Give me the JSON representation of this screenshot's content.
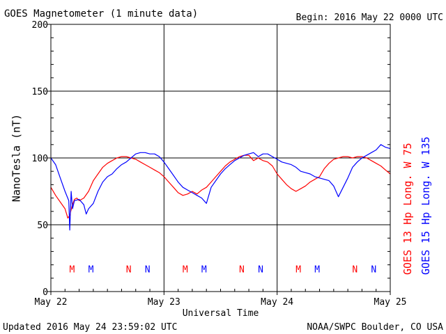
{
  "header": {
    "title": "GOES Magnetometer (1 minute data)",
    "begin": "Begin:  2016 May 22 0000 UTC"
  },
  "footer": {
    "updated": "Updated 2016 May 24 23:59:02 UTC",
    "credit": "NOAA/SWPC Boulder, CO USA"
  },
  "chart_data": {
    "type": "line",
    "title": "GOES Magnetometer (1 minute data)",
    "xlabel": "Universal Time",
    "ylabel": "NanoTesla (nT)",
    "xlim": [
      0,
      72
    ],
    "ylim": [
      0,
      200
    ],
    "yticks": [
      0,
      50,
      100,
      150,
      200
    ],
    "xticks": [
      {
        "value": 0,
        "label": "May 22"
      },
      {
        "value": 24,
        "label": "May 23"
      },
      {
        "value": 48,
        "label": "May 24"
      },
      {
        "value": 72,
        "label": "May 25"
      }
    ],
    "x_unit": "hours since 2016 May 22 0000 UTC",
    "grid": true,
    "legend_position": "right, vertical",
    "colors": {
      "goes13": "#ff0000",
      "goes15": "#0000ff",
      "grid": "#000000"
    },
    "series": [
      {
        "name": "GOES 13 Hp  Long. W 75",
        "color": "#ff0000",
        "x": [
          0,
          1,
          2,
          3,
          3.6,
          4,
          4.5,
          5,
          5.5,
          6,
          7,
          8,
          9,
          10,
          11,
          12,
          13,
          14,
          15,
          16,
          17,
          18,
          19,
          20,
          21,
          22,
          23,
          24,
          25,
          26,
          27,
          28,
          29,
          30,
          31,
          32,
          33,
          34,
          35,
          36,
          37,
          38,
          39,
          40,
          41,
          42,
          43,
          44,
          45,
          46,
          47,
          48,
          49,
          50,
          51,
          52,
          53,
          54,
          55,
          56,
          57,
          58,
          59,
          60,
          61,
          62,
          63,
          64,
          65,
          66,
          67,
          68,
          69,
          70,
          71,
          72
        ],
        "values": [
          78,
          72,
          67,
          62,
          55,
          57,
          64,
          69,
          70,
          68,
          70,
          75,
          83,
          88,
          93,
          96,
          98,
          100,
          101,
          101,
          100,
          99,
          97,
          95,
          93,
          91,
          89,
          86,
          82,
          78,
          74,
          72,
          73,
          75,
          73,
          76,
          78,
          82,
          86,
          90,
          94,
          97,
          99,
          101,
          102,
          102,
          98,
          100,
          98,
          97,
          94,
          88,
          84,
          80,
          77,
          75,
          77,
          79,
          82,
          84,
          86,
          92,
          96,
          99,
          100,
          101,
          101,
          100,
          101,
          101,
          100,
          98,
          96,
          94,
          91,
          88
        ]
      },
      {
        "name": "GOES 15 Hp  Long. W 135",
        "color": "#0000ff",
        "x": [
          0,
          1,
          2,
          3,
          3.8,
          4,
          4.3,
          4.6,
          5,
          6,
          7,
          7.5,
          8,
          9,
          10,
          11,
          12,
          13,
          14,
          15,
          16,
          17,
          18,
          19,
          20,
          21,
          22,
          23,
          24,
          25,
          26,
          27,
          28,
          29,
          30,
          31,
          32,
          33,
          34,
          35,
          36,
          37,
          38,
          39,
          40,
          41,
          42,
          43,
          44,
          45,
          46,
          47,
          48,
          49,
          50,
          51,
          52,
          53,
          54,
          55,
          56,
          57,
          58,
          59,
          60,
          61,
          62,
          63,
          64,
          65,
          66,
          67,
          68,
          69,
          70,
          71,
          72
        ],
        "values": [
          100,
          95,
          85,
          75,
          68,
          46,
          75,
          62,
          68,
          69,
          65,
          58,
          62,
          66,
          75,
          82,
          86,
          88,
          92,
          95,
          97,
          100,
          103,
          104,
          104,
          103,
          103,
          101,
          97,
          92,
          87,
          82,
          78,
          76,
          74,
          72,
          70,
          66,
          78,
          83,
          88,
          92,
          95,
          98,
          100,
          102,
          103,
          104,
          101,
          103,
          103,
          101,
          99,
          97,
          96,
          95,
          93,
          90,
          89,
          88,
          86,
          85,
          84,
          83,
          79,
          71,
          78,
          85,
          93,
          97,
          100,
          102,
          104,
          106,
          110,
          108,
          107
        ]
      }
    ],
    "markers": [
      {
        "label": "M",
        "series": "GOES 13",
        "x": 4.5
      },
      {
        "label": "M",
        "series": "GOES 15",
        "x": 8.5
      },
      {
        "label": "N",
        "series": "GOES 13",
        "x": 16.5
      },
      {
        "label": "N",
        "series": "GOES 15",
        "x": 20.5
      },
      {
        "label": "M",
        "series": "GOES 13",
        "x": 28.5
      },
      {
        "label": "M",
        "series": "GOES 15",
        "x": 32.5
      },
      {
        "label": "N",
        "series": "GOES 13",
        "x": 40.5
      },
      {
        "label": "N",
        "series": "GOES 15",
        "x": 44.5
      },
      {
        "label": "M",
        "series": "GOES 13",
        "x": 52.5
      },
      {
        "label": "M",
        "series": "GOES 15",
        "x": 56.5
      },
      {
        "label": "N",
        "series": "GOES 13",
        "x": 64.5
      },
      {
        "label": "N",
        "series": "GOES 15",
        "x": 68.5
      }
    ],
    "marker_y": 17
  }
}
